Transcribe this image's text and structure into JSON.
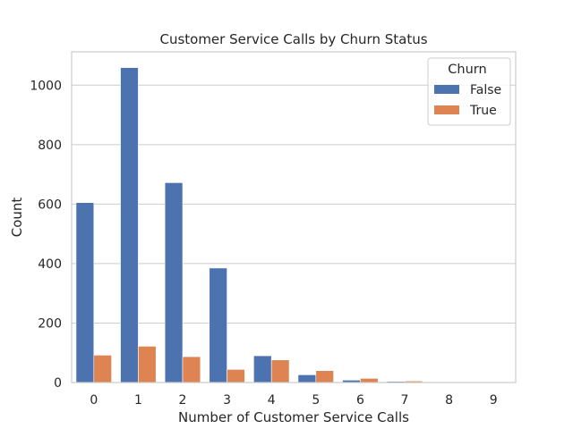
{
  "chart_data": {
    "type": "bar",
    "title": "Customer Service Calls by Churn Status",
    "xlabel": "Number of Customer Service Calls",
    "ylabel": "Count",
    "categories": [
      "0",
      "1",
      "2",
      "3",
      "4",
      "5",
      "6",
      "7",
      "8",
      "9"
    ],
    "series": [
      {
        "name": "False",
        "color": "#4c72b0",
        "values": [
          605,
          1059,
          672,
          385,
          90,
          26,
          8,
          4,
          1,
          0
        ]
      },
      {
        "name": "True",
        "color": "#dd8452",
        "values": [
          92,
          122,
          87,
          44,
          76,
          40,
          14,
          5,
          1,
          2
        ]
      }
    ],
    "yticks": [
      0,
      200,
      400,
      600,
      800,
      1000
    ],
    "ylim": [
      0,
      1112
    ],
    "grid": "horizontal",
    "legend": {
      "title": "Churn",
      "placement": "top-right"
    }
  }
}
